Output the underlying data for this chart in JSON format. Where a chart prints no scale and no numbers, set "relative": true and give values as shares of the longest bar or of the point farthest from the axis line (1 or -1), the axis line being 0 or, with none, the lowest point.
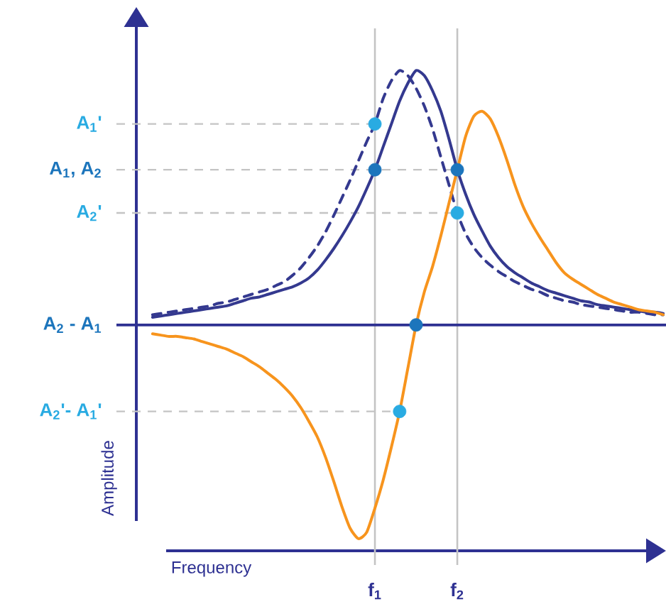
{
  "chart_data": {
    "type": "line",
    "relative": true,
    "xlabel": "Frequency",
    "ylabel": "Amplitude",
    "grid": "x",
    "categories": [
      null,
      null,
      null,
      null,
      null,
      null,
      null,
      null,
      null,
      null,
      null,
      null,
      null,
      null,
      null,
      null,
      null,
      null,
      null,
      null,
      null,
      null,
      null,
      null,
      null,
      null,
      null,
      "f$_{1}$",
      null,
      null,
      null,
      null,
      null,
      null,
      null,
      null,
      null,
      "f$_{2}$",
      null,
      null,
      null,
      null,
      null,
      null,
      null,
      null,
      null,
      null,
      null,
      null,
      null,
      null,
      null,
      null,
      null,
      null,
      null,
      null,
      null,
      null,
      null,
      null,
      null
    ],
    "series": [
      {
        "color": "#34398f",
        "line_style": "solid",
        "values": [
          0.03,
          0.035,
          0.04,
          0.045,
          0.05,
          0.055,
          0.06,
          0.065,
          0.07,
          0.075,
          0.085,
          0.095,
          0.105,
          0.11,
          0.12,
          0.13,
          0.14,
          0.15,
          0.165,
          0.185,
          0.215,
          0.255,
          0.3,
          0.35,
          0.405,
          0.465,
          0.535,
          0.61,
          0.7,
          0.79,
          0.88,
          0.95,
          1,
          0.98,
          0.92,
          0.84,
          0.73,
          0.61,
          0.515,
          0.435,
          0.37,
          0.31,
          0.265,
          0.23,
          0.205,
          0.185,
          0.165,
          0.15,
          0.135,
          0.125,
          0.115,
          0.105,
          0.095,
          0.09,
          0.08,
          0.075,
          0.07,
          0.065,
          0.06,
          0.055,
          0.05,
          0.05,
          0.045
        ]
      },
      {
        "color": "#34398f",
        "line_style": "dashed",
        "values": [
          0.04,
          0.045,
          0.05,
          0.055,
          0.06,
          0.065,
          0.07,
          0.075,
          0.085,
          0.09,
          0.1,
          0.11,
          0.12,
          0.13,
          0.14,
          0.155,
          0.17,
          0.195,
          0.225,
          0.265,
          0.31,
          0.365,
          0.43,
          0.5,
          0.57,
          0.645,
          0.72,
          0.79,
          0.89,
          0.96,
          1,
          0.98,
          0.93,
          0.86,
          0.77,
          0.66,
          0.55,
          0.44,
          0.36,
          0.305,
          0.265,
          0.235,
          0.21,
          0.19,
          0.17,
          0.155,
          0.14,
          0.13,
          0.115,
          0.105,
          0.095,
          0.09,
          0.08,
          0.075,
          0.07,
          0.065,
          0.06,
          0.055,
          0.05,
          0.05,
          0.045,
          0.04,
          0.04
        ]
      },
      {
        "color": "#f7941d",
        "line_style": "solid",
        "values": [
          -0.035,
          -0.04,
          -0.045,
          -0.045,
          -0.05,
          -0.055,
          -0.065,
          -0.075,
          -0.085,
          -0.095,
          -0.11,
          -0.125,
          -0.145,
          -0.165,
          -0.19,
          -0.215,
          -0.245,
          -0.28,
          -0.325,
          -0.38,
          -0.44,
          -0.52,
          -0.615,
          -0.715,
          -0.8,
          -0.84,
          -0.815,
          -0.72,
          -0.61,
          -0.48,
          -0.34,
          -0.17,
          0,
          0.13,
          0.23,
          0.35,
          0.48,
          0.61,
          0.74,
          0.82,
          0.84,
          0.81,
          0.74,
          0.65,
          0.55,
          0.465,
          0.4,
          0.345,
          0.295,
          0.245,
          0.205,
          0.18,
          0.16,
          0.14,
          0.12,
          0.105,
          0.09,
          0.08,
          0.07,
          0.06,
          0.055,
          0.05,
          0.04
        ]
      },
      {
        "type": "scatter",
        "color": "#29abe2",
        "marker": "circle",
        "values": [
          null,
          null,
          null,
          null,
          null,
          null,
          null,
          null,
          null,
          null,
          null,
          null,
          null,
          null,
          null,
          null,
          null,
          null,
          null,
          null,
          null,
          null,
          null,
          null,
          null,
          null,
          null,
          0.79,
          null,
          null,
          -0.34,
          null,
          null,
          null,
          null,
          null,
          null,
          0.44,
          null,
          null,
          null,
          null,
          null,
          null,
          null,
          null,
          null,
          null,
          null,
          null,
          null,
          null,
          null,
          null,
          null,
          null,
          null,
          null,
          null,
          null,
          null,
          null,
          null
        ]
      },
      {
        "type": "scatter",
        "color": "#1c75bc",
        "marker": "circle",
        "values": [
          null,
          null,
          null,
          null,
          null,
          null,
          null,
          null,
          null,
          null,
          null,
          null,
          null,
          null,
          null,
          null,
          null,
          null,
          null,
          null,
          null,
          null,
          null,
          null,
          null,
          null,
          null,
          0.61,
          null,
          null,
          null,
          null,
          0,
          null,
          null,
          null,
          null,
          0.61,
          null,
          null,
          null,
          null,
          null,
          null,
          null,
          null,
          null,
          null,
          null,
          null,
          null,
          null,
          null,
          null,
          null,
          null,
          null,
          null,
          null,
          null,
          null,
          null,
          null
        ]
      }
    ],
    "ref_lines": [
      {
        "axis": "y",
        "value": 0.79,
        "label": "A$_{1}$'",
        "color": "#c4c4c4",
        "line_style": "dashed"
      },
      {
        "axis": "y",
        "value": 0.61,
        "label": "A$_{1}$, A$_{2}$",
        "color": "#c4c4c4",
        "line_style": "dashed"
      },
      {
        "axis": "y",
        "value": 0.44,
        "label": "A$_{2}$'",
        "color": "#c4c4c4",
        "line_style": "dashed"
      },
      {
        "axis": "y",
        "value": 0,
        "label": "A$_{2}$ - A$_{1}$",
        "color": "#2e3192",
        "line_style": "solid"
      },
      {
        "axis": "y",
        "value": -0.34,
        "label": "A$_{2}$'- A$_{1}$'",
        "color": "#c4c4c4",
        "line_style": "dashed"
      }
    ]
  }
}
